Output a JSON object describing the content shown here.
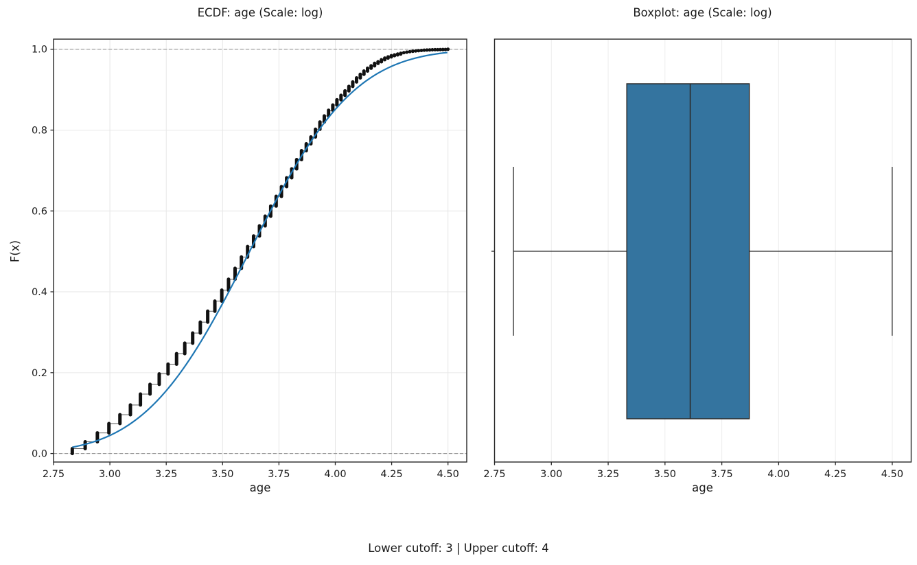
{
  "figure": {
    "background": "#ffffff",
    "caption": "Lower cutoff: 3 | Upper cutoff: 4"
  },
  "colors": {
    "ecdf_marker": "#111111",
    "ecdf_step_connector": "#5a5a5a",
    "fit_line": "#1f77b4",
    "box_fill": "#34749f",
    "box_edge": "#2b2b2b",
    "grid": "#e6e6e6",
    "grid_right": "#ededed",
    "dashed_reference": "#8c8c8c",
    "spine": "#262626",
    "text": "#1a1a1a"
  },
  "chart_data": [
    {
      "type": "scatter",
      "subtype": "ecdf_with_fitted_cdf",
      "title": "ECDF: age (Scale: log)",
      "xlabel": "age",
      "ylabel": "F(x)",
      "scale": "log",
      "xlim": [
        2.75,
        4.583
      ],
      "ylim": [
        -0.02,
        1.026
      ],
      "xticks": [
        "2.75",
        "3.00",
        "3.25",
        "3.50",
        "3.75",
        "4.00",
        "4.25",
        "4.50"
      ],
      "xtick_values": [
        2.75,
        3.0,
        3.25,
        3.5,
        3.75,
        4.0,
        4.25,
        4.5
      ],
      "yticks": [
        "0.0",
        "0.2",
        "0.4",
        "0.6",
        "0.8",
        "1.0"
      ],
      "ytick_values": [
        0.0,
        0.2,
        0.4,
        0.6,
        0.8,
        1.0
      ],
      "grid": true,
      "reference_lines_y": [
        0.0,
        1.0
      ],
      "ecdf": {
        "x_transform": "ln(age)",
        "ages": [
          17,
          18,
          19,
          20,
          21,
          22,
          23,
          24,
          25,
          26,
          27,
          28,
          29,
          30,
          31,
          32,
          33,
          34,
          35,
          36,
          37,
          38,
          39,
          40,
          41,
          42,
          43,
          44,
          45,
          46,
          47,
          48,
          49,
          50,
          51,
          52,
          53,
          54,
          55,
          56,
          57,
          58,
          59,
          60,
          61,
          62,
          63,
          64,
          65,
          66,
          67,
          68,
          69,
          70,
          71,
          72,
          73,
          74,
          75,
          76,
          77,
          78,
          79,
          80,
          81,
          82,
          83,
          84,
          85,
          86,
          87,
          88,
          89,
          90
        ],
        "cumulative": [
          0.012,
          0.029,
          0.051,
          0.074,
          0.096,
          0.12,
          0.147,
          0.171,
          0.197,
          0.221,
          0.247,
          0.273,
          0.298,
          0.325,
          0.352,
          0.377,
          0.404,
          0.431,
          0.458,
          0.486,
          0.512,
          0.538,
          0.563,
          0.587,
          0.612,
          0.636,
          0.66,
          0.682,
          0.704,
          0.727,
          0.749,
          0.766,
          0.783,
          0.802,
          0.82,
          0.835,
          0.849,
          0.862,
          0.875,
          0.886,
          0.897,
          0.908,
          0.919,
          0.929,
          0.938,
          0.946,
          0.953,
          0.959,
          0.965,
          0.969,
          0.974,
          0.978,
          0.981,
          0.984,
          0.986,
          0.988,
          0.99,
          0.9915,
          0.9928,
          0.994,
          0.9949,
          0.9956,
          0.9963,
          0.997,
          0.9976,
          0.998,
          0.9983,
          0.9986,
          0.9988,
          0.9989,
          0.9991,
          0.9992,
          0.9993,
          1.0
        ]
      },
      "fit": {
        "name": "fitted normal CDF on ln(age)",
        "mu": 3.62,
        "sigma": 0.365,
        "x_range": [
          2.8332,
          4.4998
        ]
      }
    },
    {
      "type": "boxplot",
      "title": "Boxplot: age (Scale: log)",
      "xlabel": "age",
      "scale": "log",
      "orientation": "horizontal",
      "xlim": [
        2.75,
        4.583
      ],
      "xticks": [
        "2.75",
        "3.00",
        "3.25",
        "3.50",
        "3.75",
        "4.00",
        "4.25",
        "4.50"
      ],
      "xtick_values": [
        2.75,
        3.0,
        3.25,
        3.5,
        3.75,
        4.0,
        4.25,
        4.5
      ],
      "grid": true,
      "stats_log": {
        "whisker_low": 2.8332,
        "q1": 3.332,
        "median": 3.611,
        "q3": 3.871,
        "whisker_high": 4.4998
      }
    }
  ]
}
